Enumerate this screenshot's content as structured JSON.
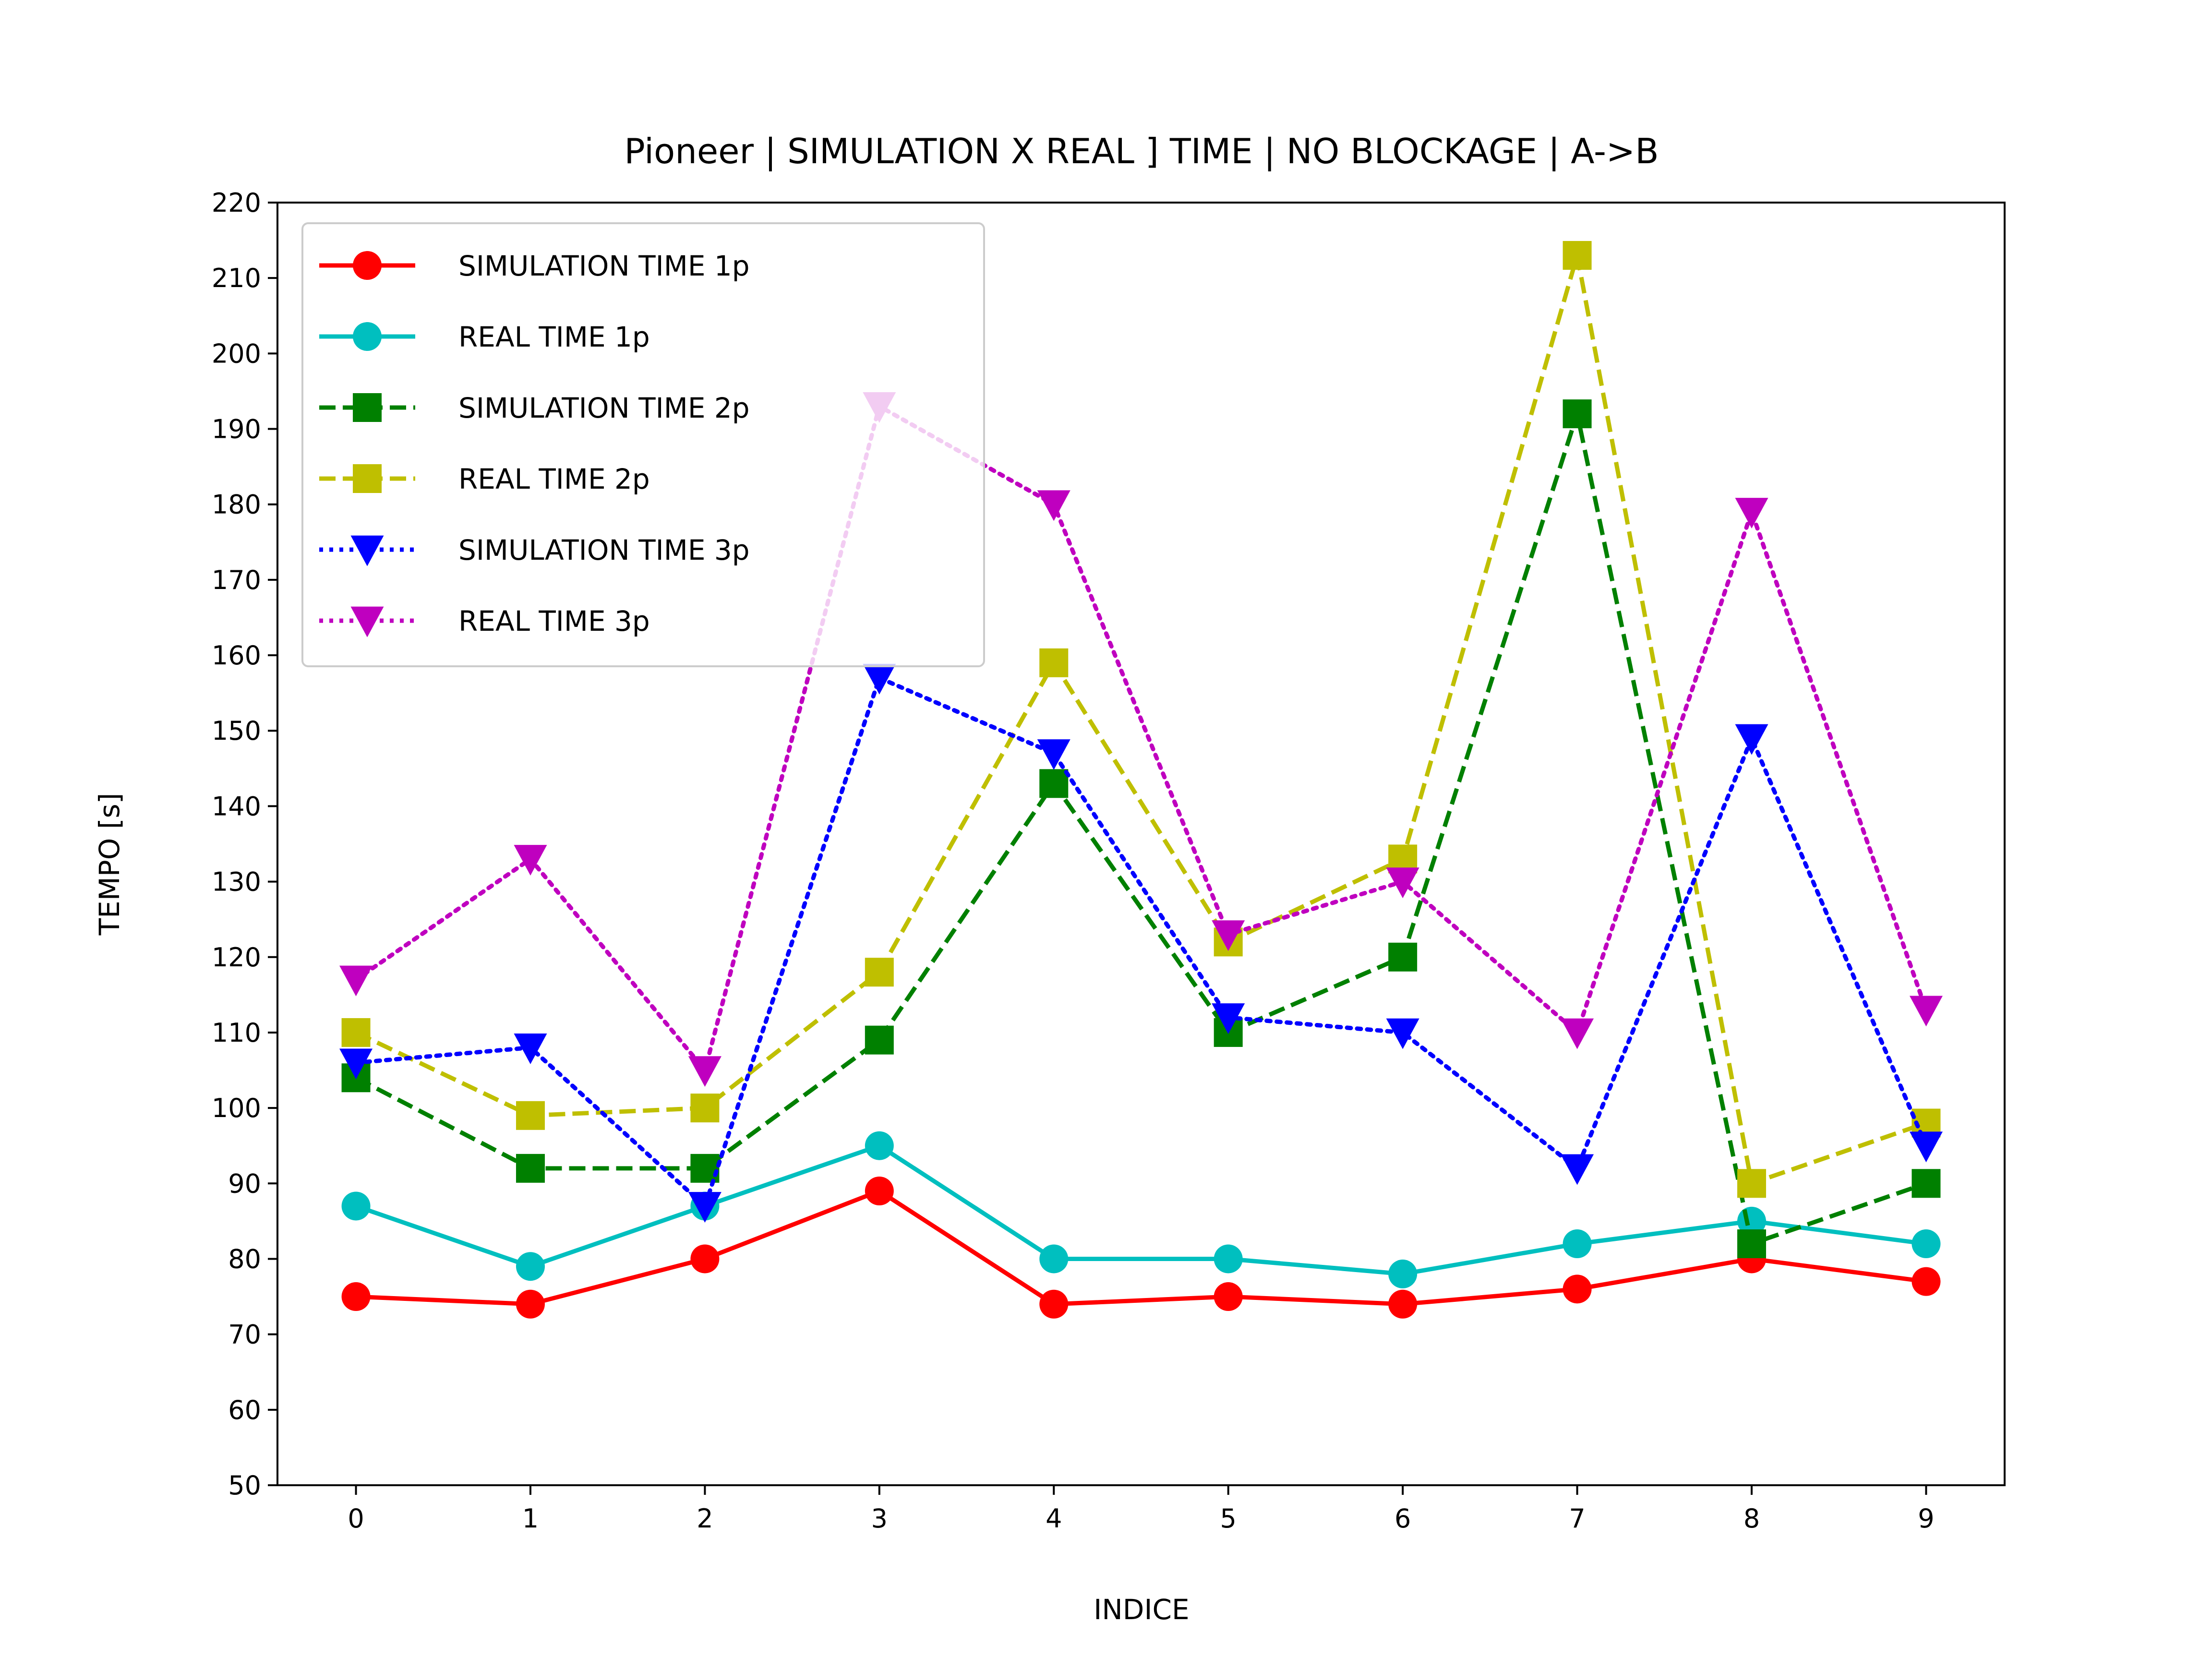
{
  "chart_data": {
    "type": "line",
    "title": "Pioneer |  SIMULATION X REAL ] TIME | NO BLOCKAGE | A->B",
    "xlabel": "INDICE",
    "ylabel": "TEMPO [s]",
    "x": [
      0,
      1,
      2,
      3,
      4,
      5,
      6,
      7,
      8,
      9
    ],
    "xlim": [
      -0.45,
      9.45
    ],
    "ylim": [
      50,
      220
    ],
    "yticks": [
      50,
      60,
      70,
      80,
      90,
      100,
      110,
      120,
      130,
      140,
      150,
      160,
      170,
      180,
      190,
      200,
      210,
      220
    ],
    "grid": false,
    "legend_position": "upper-left",
    "series": [
      {
        "name": "SIMULATION TIME 1p",
        "color": "#ff0000",
        "line_style": "solid",
        "marker": "circle",
        "values": [
          75,
          74,
          80,
          89,
          74,
          75,
          74,
          76,
          80,
          77
        ]
      },
      {
        "name": "REAL TIME 1p",
        "color": "#00bfbf",
        "line_style": "solid",
        "marker": "circle",
        "values": [
          87,
          79,
          87,
          95,
          80,
          80,
          78,
          82,
          85,
          82
        ]
      },
      {
        "name": "SIMULATION TIME 2p",
        "color": "#008000",
        "line_style": "dashed",
        "marker": "square",
        "values": [
          104,
          92,
          92,
          109,
          143,
          110,
          120,
          192,
          82,
          90
        ]
      },
      {
        "name": "REAL TIME 2p",
        "color": "#bfbf00",
        "line_style": "dashed",
        "marker": "square",
        "values": [
          110,
          99,
          100,
          118,
          159,
          122,
          133,
          213,
          90,
          98
        ]
      },
      {
        "name": "SIMULATION TIME 3p",
        "color": "#0000ff",
        "line_style": "dotted",
        "marker": "triangle-down",
        "values": [
          106,
          108,
          87,
          157,
          147,
          112,
          110,
          92,
          149,
          95
        ]
      },
      {
        "name": "REAL TIME 3p",
        "color": "#bf00bf",
        "line_style": "dotted",
        "marker": "triangle-down",
        "values": [
          117,
          133,
          105,
          193,
          180,
          123,
          130,
          110,
          179,
          113
        ]
      }
    ]
  }
}
